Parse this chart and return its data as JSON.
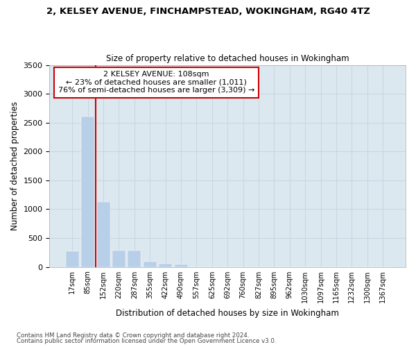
{
  "title1": "2, KELSEY AVENUE, FINCHAMPSTEAD, WOKINGHAM, RG40 4TZ",
  "title2": "Size of property relative to detached houses in Wokingham",
  "xlabel": "Distribution of detached houses by size in Wokingham",
  "ylabel": "Number of detached properties",
  "bar_values": [
    270,
    2600,
    1120,
    280,
    280,
    95,
    55,
    40,
    0,
    0,
    0,
    0,
    0,
    0,
    0,
    0,
    0,
    0,
    0,
    0,
    0
  ],
  "bar_labels": [
    "17sqm",
    "85sqm",
    "152sqm",
    "220sqm",
    "287sqm",
    "355sqm",
    "422sqm",
    "490sqm",
    "557sqm",
    "625sqm",
    "692sqm",
    "760sqm",
    "827sqm",
    "895sqm",
    "962sqm",
    "1030sqm",
    "1097sqm",
    "1165sqm",
    "1232sqm",
    "1300sqm",
    "1367sqm"
  ],
  "bar_color": "#b8cfe8",
  "bar_edge_color": "#b8cfe8",
  "grid_color": "#c8d4e0",
  "background_color": "#dce8f0",
  "vline_color": "#cc0000",
  "annotation_title": "2 KELSEY AVENUE: 108sqm",
  "annotation_line1": "← 23% of detached houses are smaller (1,011)",
  "annotation_line2": "76% of semi-detached houses are larger (3,309) →",
  "annotation_box_color": "#ffffff",
  "annotation_box_edge": "#cc0000",
  "footnote1": "Contains HM Land Registry data © Crown copyright and database right 2024.",
  "footnote2": "Contains public sector information licensed under the Open Government Licence v3.0.",
  "ylim": [
    0,
    3500
  ],
  "yticks": [
    0,
    500,
    1000,
    1500,
    2000,
    2500,
    3000,
    3500
  ]
}
